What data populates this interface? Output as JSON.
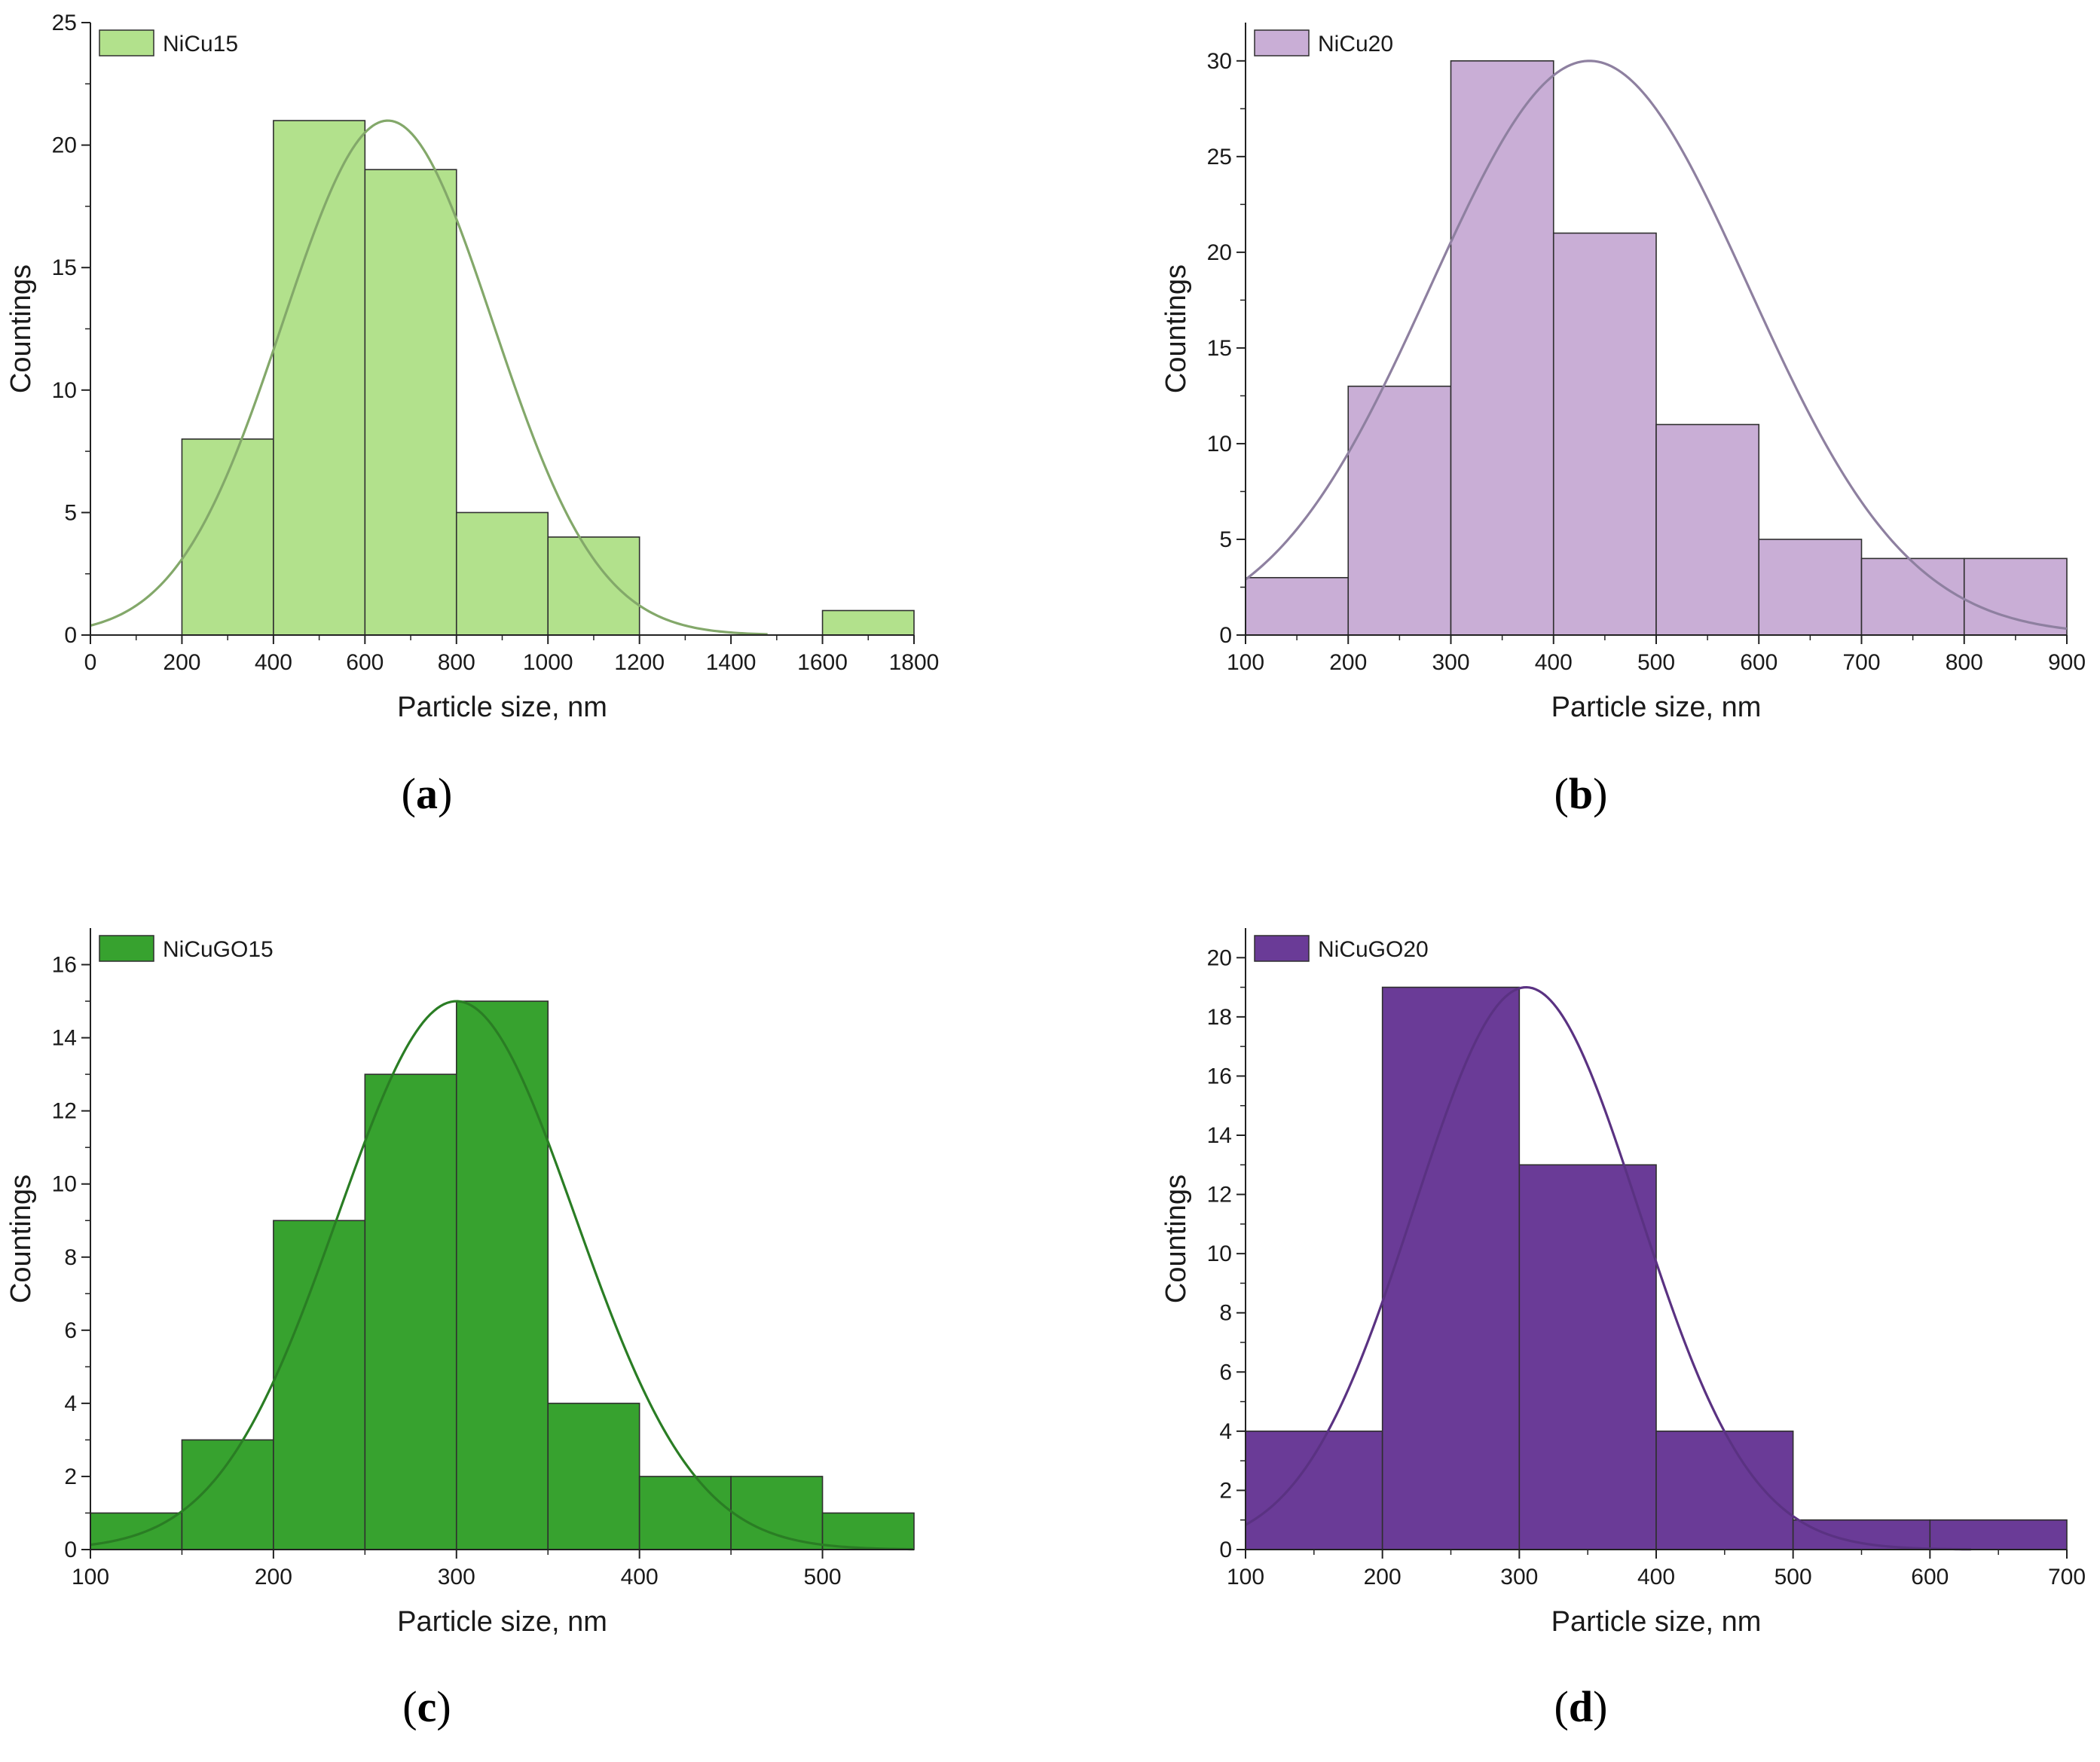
{
  "chart_data": [
    {
      "type": "bar",
      "panel_label": "a",
      "legend": "NiCu15",
      "color": "#b2e18c",
      "curve_color": "#83a86a",
      "xlabel": "Particle size, nm",
      "ylabel": "Countings",
      "xlim": [
        0,
        1800
      ],
      "ylim": [
        0,
        25
      ],
      "xticks": [
        0,
        200,
        400,
        600,
        800,
        1000,
        1200,
        1400,
        1600,
        1800
      ],
      "yticks": [
        0,
        5,
        10,
        15,
        20,
        25
      ],
      "bins": [
        [
          200,
          400
        ],
        [
          400,
          600
        ],
        [
          600,
          800
        ],
        [
          800,
          1000
        ],
        [
          1000,
          1200
        ],
        [
          1600,
          1800
        ]
      ],
      "values": [
        8,
        21,
        19,
        5,
        4,
        1
      ],
      "fit": {
        "type": "gaussian",
        "mean": 650,
        "sigma": 230,
        "peak": 21,
        "x_range": [
          0,
          1480
        ]
      }
    },
    {
      "type": "bar",
      "panel_label": "b",
      "legend": "NiCu20",
      "color": "#c9aed6",
      "curve_color": "#8e80a0",
      "xlabel": "Particle size, nm",
      "ylabel": "Countings",
      "xlim": [
        100,
        900
      ],
      "ylim": [
        0,
        32
      ],
      "xticks": [
        100,
        200,
        300,
        400,
        500,
        600,
        700,
        800,
        900
      ],
      "yticks": [
        0,
        5,
        10,
        15,
        20,
        25,
        30
      ],
      "bins": [
        [
          100,
          200
        ],
        [
          200,
          300
        ],
        [
          300,
          400
        ],
        [
          400,
          500
        ],
        [
          500,
          600
        ],
        [
          600,
          700
        ],
        [
          700,
          800
        ],
        [
          800,
          900
        ]
      ],
      "values": [
        3,
        13,
        30,
        21,
        11,
        5,
        4,
        4
      ],
      "fit": {
        "type": "gaussian",
        "mean": 435,
        "sigma": 155,
        "peak": 30,
        "x_range": [
          100,
          900
        ]
      }
    },
    {
      "type": "bar",
      "panel_label": "c",
      "legend": "NiCuGO15",
      "color": "#37a22f",
      "curve_color": "#2a7d24",
      "xlabel": "Particle size, nm",
      "ylabel": "Countings",
      "xlim": [
        100,
        550
      ],
      "ylim": [
        0,
        17
      ],
      "xticks": [
        100,
        200,
        300,
        400,
        500
      ],
      "yticks": [
        0,
        2,
        4,
        6,
        8,
        10,
        12,
        14,
        16
      ],
      "bins": [
        [
          100,
          150
        ],
        [
          150,
          200
        ],
        [
          200,
          250
        ],
        [
          250,
          300
        ],
        [
          300,
          350
        ],
        [
          350,
          400
        ],
        [
          400,
          450
        ],
        [
          450,
          500
        ],
        [
          500,
          550
        ]
      ],
      "values": [
        1,
        3,
        9,
        13,
        15,
        4,
        2,
        2,
        1
      ],
      "fit": {
        "type": "gaussian",
        "mean": 300,
        "sigma": 65,
        "peak": 15,
        "x_range": [
          100,
          550
        ]
      }
    },
    {
      "type": "bar",
      "panel_label": "d",
      "legend": "NiCuGO20",
      "color": "#6a3b97",
      "curve_color": "#5a3282",
      "xlabel": "Particle size, nm",
      "ylabel": "Countings",
      "xlim": [
        100,
        700
      ],
      "ylim": [
        0,
        21
      ],
      "xticks": [
        100,
        200,
        300,
        400,
        500,
        600,
        700
      ],
      "yticks": [
        0,
        2,
        4,
        6,
        8,
        10,
        12,
        14,
        16,
        18,
        20
      ],
      "bins": [
        [
          100,
          200
        ],
        [
          200,
          300
        ],
        [
          300,
          400
        ],
        [
          400,
          500
        ],
        [
          500,
          600
        ],
        [
          600,
          700
        ]
      ],
      "values": [
        4,
        19,
        13,
        4,
        1,
        1
      ],
      "fit": {
        "type": "gaussian",
        "mean": 305,
        "sigma": 82,
        "peak": 19,
        "x_range": [
          100,
          630
        ]
      }
    }
  ]
}
